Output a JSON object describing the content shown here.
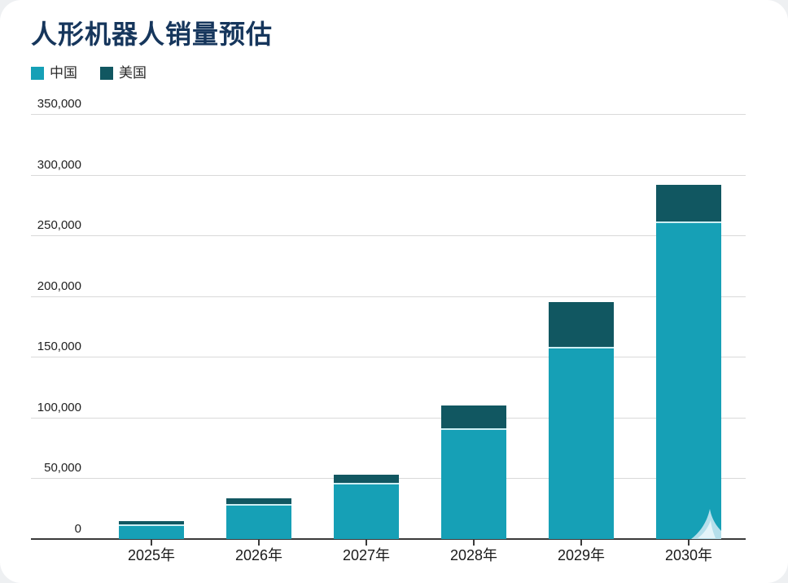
{
  "page": {
    "title": "人形机器人销量预估"
  },
  "chart_data": {
    "type": "bar",
    "stacked": true,
    "title": "人形机器人销量预估",
    "categories": [
      "2025年",
      "2026年",
      "2027年",
      "2028年",
      "2029年",
      "2030年"
    ],
    "series": [
      {
        "name": "中国",
        "color": "#16a0b6",
        "values": [
          11000,
          27500,
          45000,
          90000,
          157000,
          260000
        ]
      },
      {
        "name": "美国",
        "color": "#115761",
        "values": [
          4000,
          6000,
          8000,
          20000,
          38000,
          32000
        ]
      }
    ],
    "totals": [
      15000,
      33500,
      53000,
      110000,
      195000,
      292000
    ],
    "xlabel": "",
    "ylabel": "",
    "ylim": [
      0,
      350000
    ],
    "ytick_step": 50000,
    "ytick_labels": [
      "0",
      "50,000",
      "100,000",
      "150,000",
      "200,000",
      "250,000",
      "300,000",
      "350,000"
    ],
    "grid": "horizontal",
    "legend_position": "top-left"
  },
  "colors": {
    "title": "#16365c",
    "grid": "#d9d9d9",
    "axis": "#3a3a3a",
    "segment_divider": "#cdeef3",
    "watermark_outer": "#b5dfeb",
    "watermark_inner": "#e4f4f9"
  }
}
